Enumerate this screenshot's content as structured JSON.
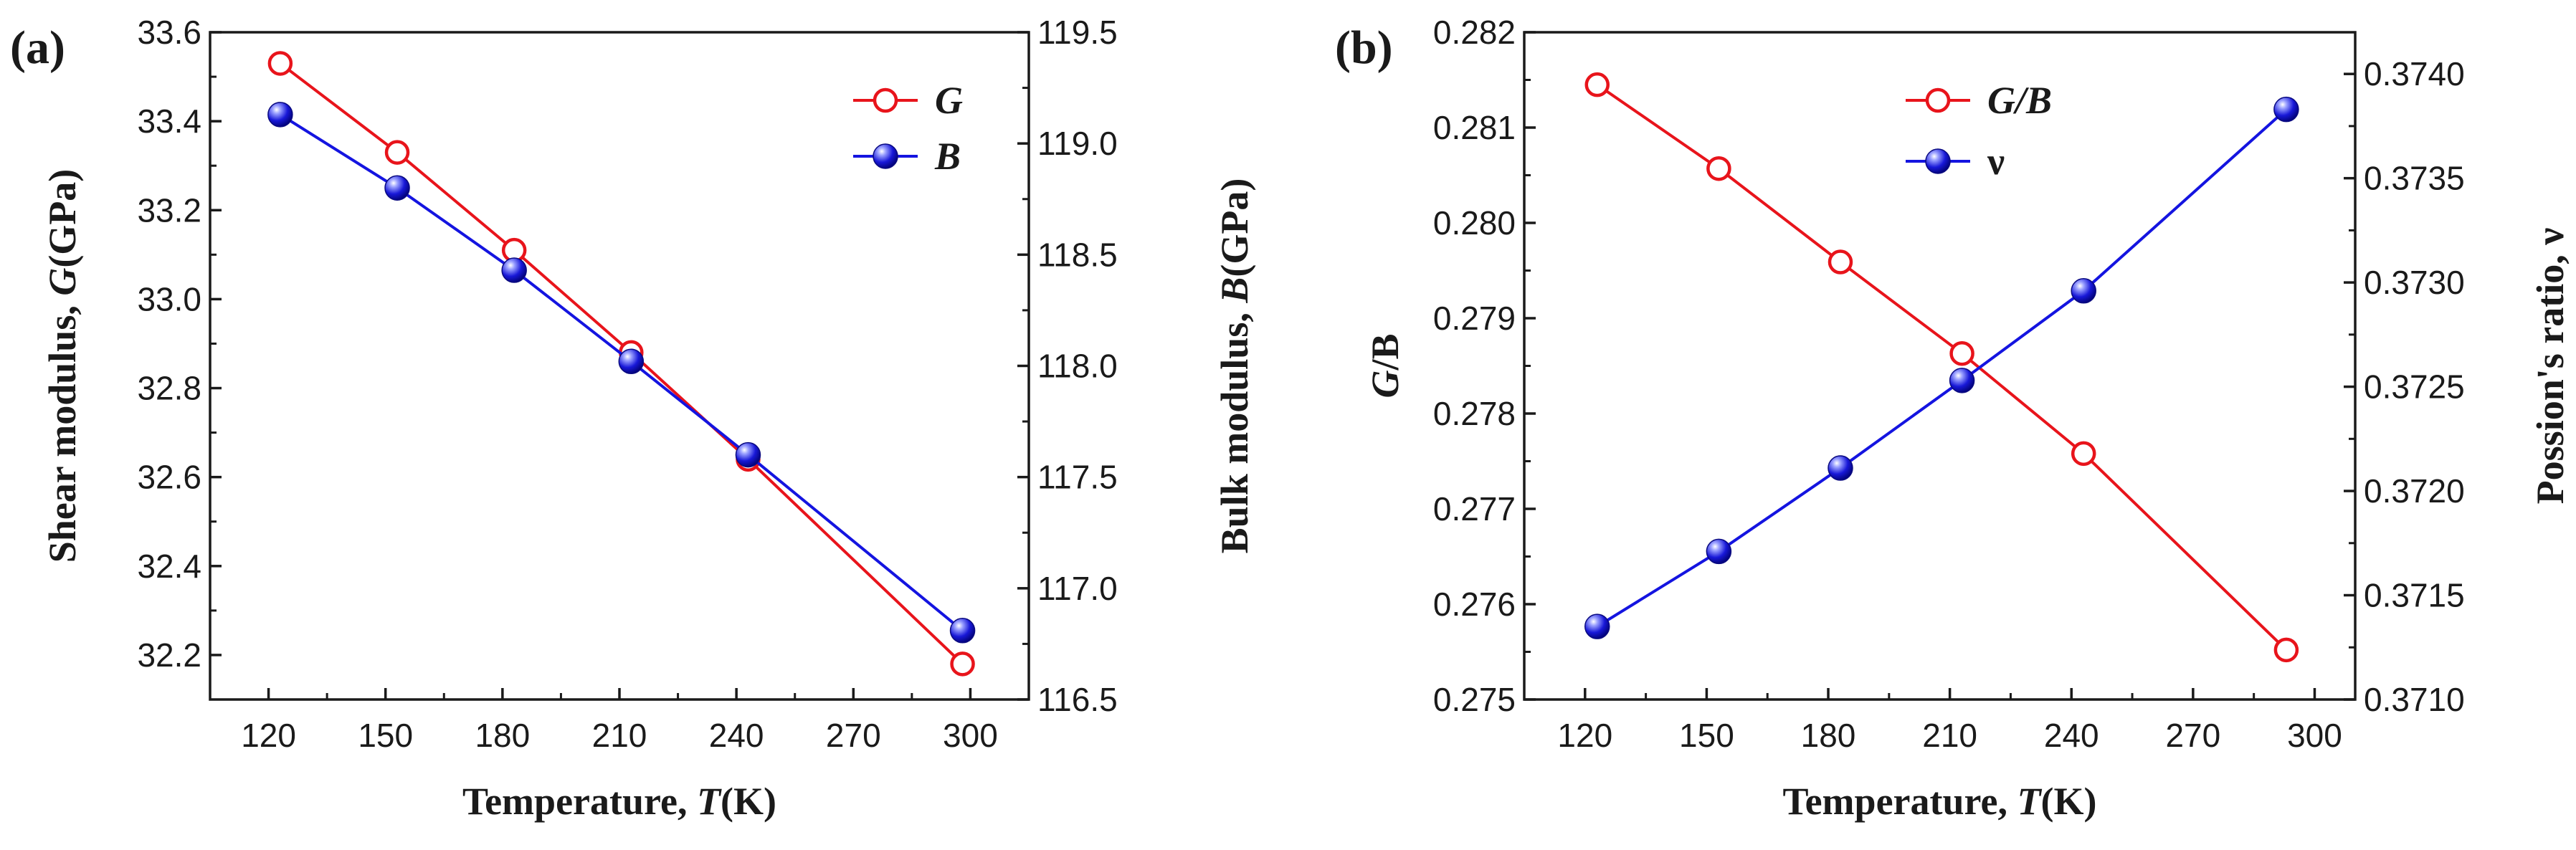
{
  "chart_data": [
    {
      "panel_label": "(a)",
      "type": "line",
      "x": [
        123,
        153,
        183,
        213,
        243,
        298
      ],
      "xlabel": "Temperature, ",
      "xlabel_symbol": "T",
      "xlabel_unit": "(K)",
      "xlim": [
        105,
        315
      ],
      "xticks": [
        120,
        150,
        180,
        210,
        240,
        270,
        300
      ],
      "ylabel": "Shear modulus, ",
      "ylabel_symbol": "G",
      "ylabel_unit": "(GPa)",
      "ylim": [
        32.1,
        33.6
      ],
      "yticks": [
        32.2,
        32.4,
        32.6,
        32.8,
        33.0,
        33.2,
        33.4,
        33.6
      ],
      "ytick_format": 1,
      "y2label": "Bulk modulus, ",
      "y2label_symbol": "B",
      "y2label_unit": "(GPa)",
      "y2lim": [
        116.5,
        119.5
      ],
      "y2ticks": [
        116.5,
        117.0,
        117.5,
        118.0,
        118.5,
        119.0,
        119.5
      ],
      "y2tick_format": 1,
      "legend_position": "top-right",
      "series": [
        {
          "name": "G",
          "axis": "left",
          "color": "#e8141b",
          "marker": "open-circle",
          "values": [
            33.53,
            33.33,
            33.11,
            32.88,
            32.64,
            32.18
          ]
        },
        {
          "name": "B",
          "axis": "right",
          "color": "#1414e0",
          "marker": "filled-sphere",
          "values": [
            119.13,
            118.8,
            118.43,
            118.02,
            117.6,
            116.81
          ]
        }
      ]
    },
    {
      "panel_label": "(b)",
      "type": "line",
      "x": [
        123,
        153,
        183,
        213,
        243,
        293
      ],
      "xlabel": "Temperature, ",
      "xlabel_symbol": "T",
      "xlabel_unit": "(K)",
      "xlim": [
        105,
        310
      ],
      "xticks": [
        120,
        150,
        180,
        210,
        240,
        270,
        300
      ],
      "ylabel": "/B",
      "ylabel_symbol": "G",
      "ylabel_unit": "",
      "ylim": [
        0.275,
        0.282
      ],
      "yticks": [
        0.275,
        0.276,
        0.277,
        0.278,
        0.279,
        0.28,
        0.281,
        0.282
      ],
      "ytick_format": 3,
      "y2label": "Possion's ratio, ν",
      "y2label_symbol": "",
      "y2label_unit": "",
      "y2lim": [
        0.371,
        0.3742
      ],
      "y2ticks": [
        0.371,
        0.3715,
        0.372,
        0.3725,
        0.373,
        0.3735,
        0.374
      ],
      "y2tick_format": 4,
      "legend_position": "top-center",
      "series": [
        {
          "name": "G/B",
          "axis": "left",
          "color": "#e8141b",
          "marker": "open-circle",
          "values": [
            0.28145,
            0.28057,
            0.27959,
            0.27863,
            0.27758,
            0.27552
          ]
        },
        {
          "name": "ν",
          "axis": "right",
          "color": "#1414e0",
          "marker": "filled-sphere",
          "values": [
            0.37135,
            0.37171,
            0.37211,
            0.37253,
            0.37296,
            0.37383
          ]
        }
      ]
    }
  ]
}
